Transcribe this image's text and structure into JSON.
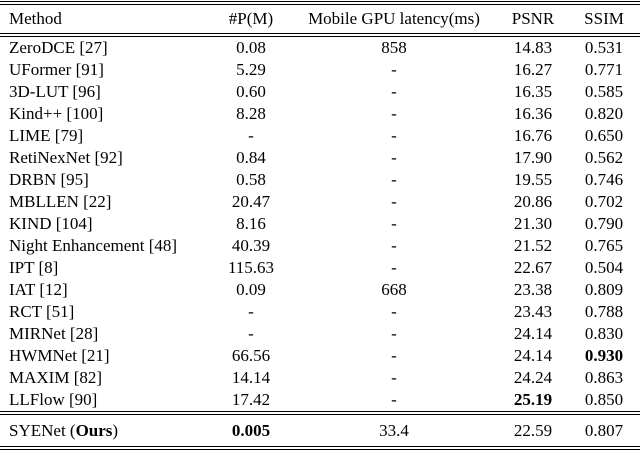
{
  "table": {
    "columns": [
      "Method",
      "#P(M)",
      "Mobile GPU latency(ms)",
      "PSNR",
      "SSIM"
    ],
    "rows": [
      {
        "method": "ZeroDCE [27]",
        "params": "0.08",
        "latency": "858",
        "psnr": "14.83",
        "ssim": "0.531"
      },
      {
        "method": "UFormer [91]",
        "params": "5.29",
        "latency": "-",
        "psnr": "16.27",
        "ssim": "0.771"
      },
      {
        "method": "3D-LUT [96]",
        "params": "0.60",
        "latency": "-",
        "psnr": "16.35",
        "ssim": "0.585"
      },
      {
        "method": "Kind++ [100]",
        "params": "8.28",
        "latency": "-",
        "psnr": "16.36",
        "ssim": "0.820"
      },
      {
        "method": "LIME [79]",
        "params": "-",
        "latency": "-",
        "psnr": "16.76",
        "ssim": "0.650"
      },
      {
        "method": "RetiNexNet [92]",
        "params": "0.84",
        "latency": "-",
        "psnr": "17.90",
        "ssim": "0.562"
      },
      {
        "method": "DRBN [95]",
        "params": "0.58",
        "latency": "-",
        "psnr": "19.55",
        "ssim": "0.746"
      },
      {
        "method": "MBLLEN [22]",
        "params": "20.47",
        "latency": "-",
        "psnr": "20.86",
        "ssim": "0.702"
      },
      {
        "method": "KIND [104]",
        "params": "8.16",
        "latency": "-",
        "psnr": "21.30",
        "ssim": "0.790"
      },
      {
        "method": "Night Enhancement [48]",
        "params": "40.39",
        "latency": "-",
        "psnr": "21.52",
        "ssim": "0.765"
      },
      {
        "method": "IPT [8]",
        "params": "115.63",
        "latency": "-",
        "psnr": "22.67",
        "ssim": "0.504"
      },
      {
        "method": "IAT [12]",
        "params": "0.09",
        "latency": "668",
        "psnr": "23.38",
        "ssim": "0.809"
      },
      {
        "method": "RCT [51]",
        "params": "-",
        "latency": "-",
        "psnr": "23.43",
        "ssim": "0.788"
      },
      {
        "method": "MIRNet [28]",
        "params": "-",
        "latency": "-",
        "psnr": "24.14",
        "ssim": "0.830"
      },
      {
        "method": "HWMNet [21]",
        "params": "66.56",
        "latency": "-",
        "psnr": "24.14",
        "ssim": "0.930",
        "bold": [
          "ssim"
        ]
      },
      {
        "method": "MAXIM [82]",
        "params": "14.14",
        "latency": "-",
        "psnr": "24.24",
        "ssim": "0.863"
      },
      {
        "method": "LLFlow [90]",
        "params": "17.42",
        "latency": "-",
        "psnr": "25.19",
        "ssim": "0.850",
        "bold": [
          "psnr"
        ]
      },
      {
        "method": "SYENet (Ours)",
        "method_bold_sub": "Ours",
        "params": "0.005",
        "latency": "33.4",
        "psnr": "22.59",
        "ssim": "0.807",
        "bold": [
          "params"
        ],
        "is_ours": true
      }
    ]
  }
}
